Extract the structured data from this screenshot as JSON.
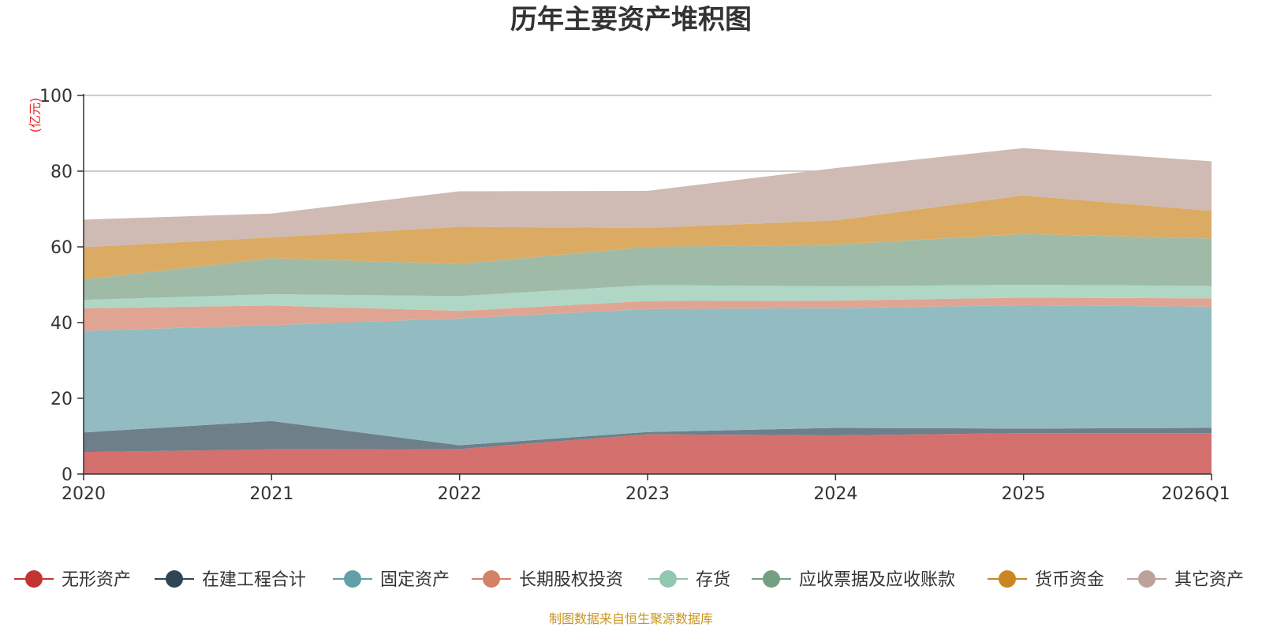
{
  "chart_data": {
    "type": "area",
    "stacked": true,
    "title": "历年主要资产堆积图",
    "unit_label": "(亿元)",
    "categories": [
      "2020",
      "2021",
      "2022",
      "2023",
      "2024",
      "2025",
      "2026Q1"
    ],
    "y_ticks": [
      "0",
      "20",
      "40",
      "60",
      "80",
      "100"
    ],
    "ylim": [
      0,
      100
    ],
    "grid": true,
    "legend_position": "bottom",
    "series": [
      {
        "name": "无形资产",
        "color": "#c23531",
        "fill": "#d4706e",
        "values": [
          5.8,
          6.5,
          6.6,
          10.5,
          10.2,
          10.8,
          10.8
        ]
      },
      {
        "name": "在建工程合计",
        "color": "#2f4554",
        "fill": "#6f7f89",
        "values": [
          5.2,
          7.5,
          1.0,
          0.6,
          2.0,
          1.2,
          1.4
        ]
      },
      {
        "name": "固定资产",
        "color": "#61a0a8",
        "fill": "#92bcc1",
        "values": [
          26.8,
          25.3,
          33.5,
          32.5,
          31.6,
          32.6,
          32.0
        ]
      },
      {
        "name": "长期股权投资",
        "color": "#d48265",
        "fill": "#e0a592",
        "values": [
          6.0,
          5.2,
          2.0,
          2.1,
          2.0,
          2.0,
          2.2
        ]
      },
      {
        "name": "存货",
        "color": "#91c7ae",
        "fill": "#b0d7c5",
        "values": [
          2.2,
          3.0,
          3.9,
          4.2,
          3.8,
          3.4,
          3.3
        ]
      },
      {
        "name": "应收票据及应收账款",
        "color": "#749f83",
        "fill": "#9fbba7",
        "values": [
          5.4,
          9.5,
          8.5,
          10.1,
          11.0,
          13.4,
          12.5
        ]
      },
      {
        "name": "货币资金",
        "color": "#ca8622",
        "fill": "#dbab63",
        "values": [
          8.5,
          5.5,
          9.8,
          5.0,
          6.4,
          10.2,
          7.3
        ]
      },
      {
        "name": "其它资产",
        "color": "#bda29a",
        "fill": "#d0bab4",
        "values": [
          7.3,
          6.3,
          9.4,
          9.8,
          13.8,
          12.5,
          13.1
        ]
      }
    ]
  },
  "footer": {
    "source": "制图数据来自恒生聚源数据库"
  }
}
